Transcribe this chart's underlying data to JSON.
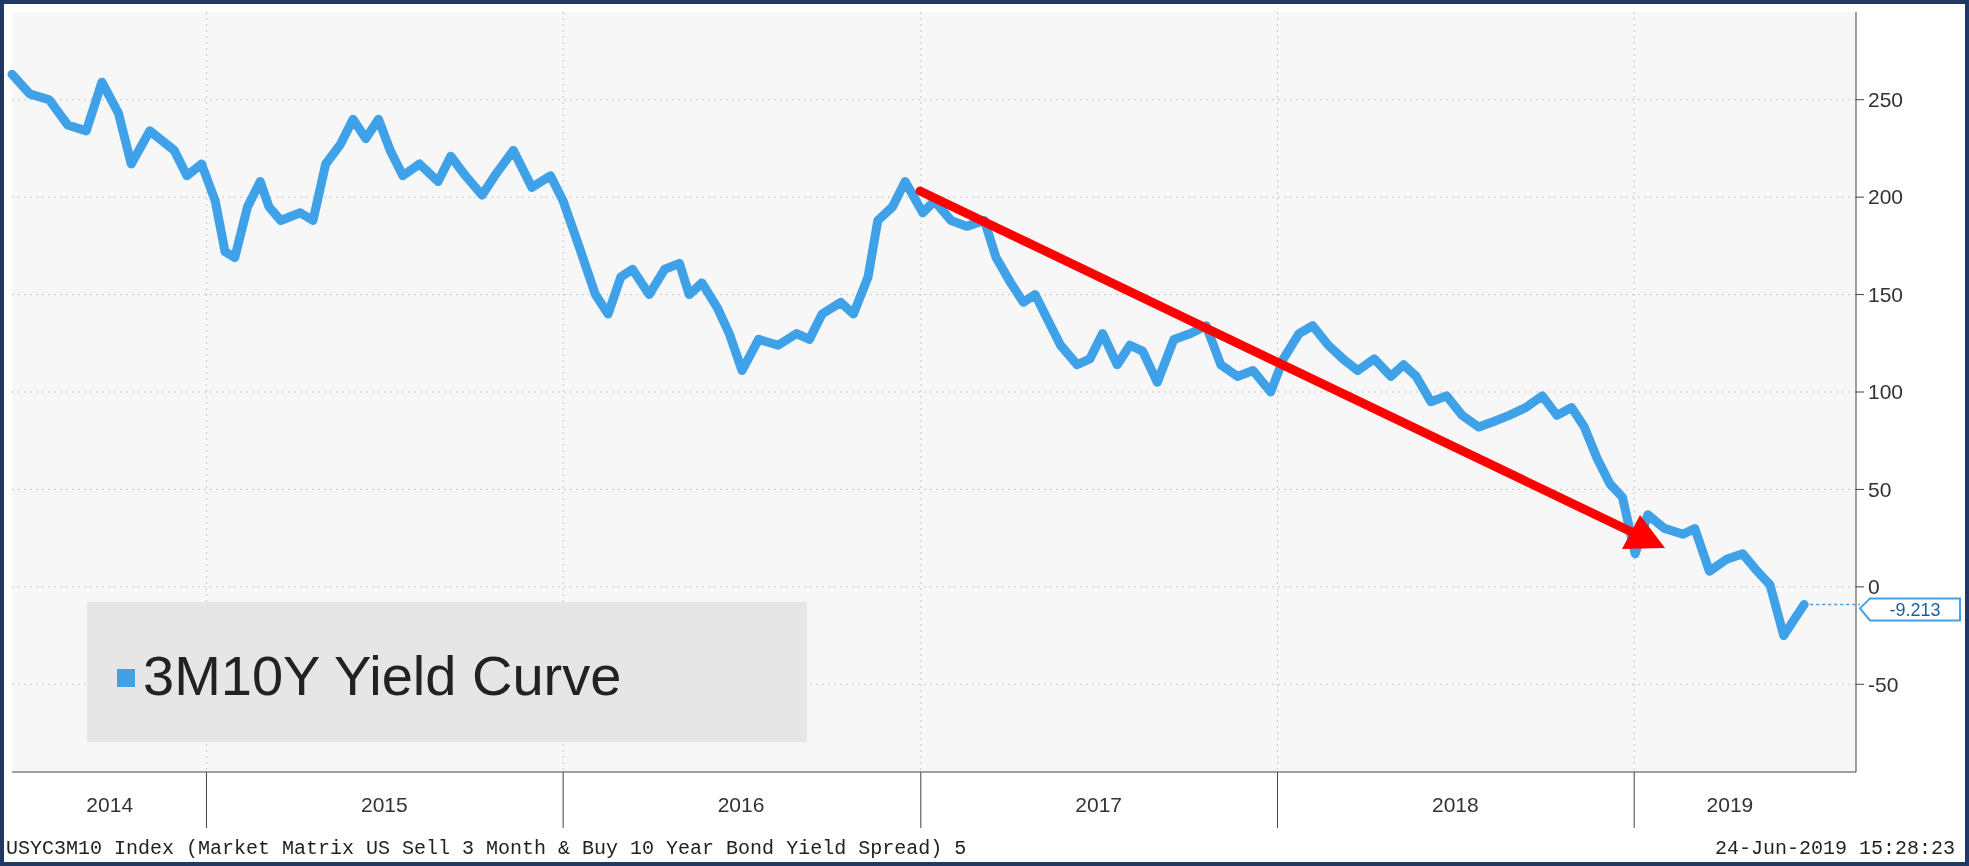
{
  "chart_data": {
    "type": "line",
    "xlim": [
      "2014-06-16",
      "2019-08-16"
    ],
    "ylim": [
      -95,
      295
    ],
    "yticks": [
      -50,
      0,
      50,
      100,
      150,
      200,
      250
    ],
    "xticks": [
      {
        "value": "2014-09-24",
        "label": "2014"
      },
      {
        "value": "2015-01-01",
        "label": null
      },
      {
        "value": "2015-07-02",
        "label": "2015"
      },
      {
        "value": "2016-01-01",
        "label": null
      },
      {
        "value": "2016-07-01",
        "label": "2016"
      },
      {
        "value": "2017-01-01",
        "label": null
      },
      {
        "value": "2017-07-02",
        "label": "2017"
      },
      {
        "value": "2018-01-01",
        "label": null
      },
      {
        "value": "2018-07-02",
        "label": "2018"
      },
      {
        "value": "2019-01-01",
        "label": null
      },
      {
        "value": "2019-04-09",
        "label": "2019"
      }
    ],
    "grid": true,
    "legend": "bottom left",
    "line_style": "solid",
    "marker": "none",
    "annotations": [
      "-9.213",
      "USYC3M10 Index (Market Matrix US Sell 3 Month & Buy 10 Year Bond Yield Spread) 5",
      "24-Jun-2019 15:28:23"
    ],
    "x": [
      "2014-06-16",
      "2014-07-04",
      "2014-07-24",
      "2014-08-12",
      "2014-08-31",
      "2014-09-16",
      "2014-10-03",
      "2014-10-16",
      "2014-11-04",
      "2014-11-29",
      "2014-12-12",
      "2014-12-27",
      "2015-01-10",
      "2015-01-20",
      "2015-01-30",
      "2015-02-12",
      "2015-02-25",
      "2015-03-06",
      "2015-03-18",
      "2015-04-07",
      "2015-04-20",
      "2015-05-03",
      "2015-05-18",
      "2015-05-31",
      "2015-06-13",
      "2015-06-26",
      "2015-07-08",
      "2015-07-21",
      "2015-08-07",
      "2015-08-26",
      "2015-09-08",
      "2015-09-23",
      "2015-10-10",
      "2015-10-23",
      "2015-11-11",
      "2015-11-30",
      "2015-12-19",
      "2016-01-01",
      "2016-01-17",
      "2016-02-03",
      "2016-02-16",
      "2016-02-29",
      "2016-03-12",
      "2016-03-29",
      "2016-04-14",
      "2016-04-29",
      "2016-05-09",
      "2016-05-22",
      "2016-06-07",
      "2016-06-19",
      "2016-07-02",
      "2016-07-19",
      "2016-08-08",
      "2016-08-27",
      "2016-09-09",
      "2016-09-22",
      "2016-10-11",
      "2016-10-24",
      "2016-11-08",
      "2016-11-18",
      "2016-12-03",
      "2016-12-16",
      "2017-01-03",
      "2017-01-15",
      "2017-02-01",
      "2017-02-17",
      "2017-03-07",
      "2017-03-19",
      "2017-04-03",
      "2017-04-16",
      "2017-04-28",
      "2017-05-11",
      "2017-05-24",
      "2017-06-10",
      "2017-06-23",
      "2017-07-06",
      "2017-07-21",
      "2017-08-03",
      "2017-08-16",
      "2017-08-31",
      "2017-09-17",
      "2017-10-04",
      "2017-10-20",
      "2017-11-04",
      "2017-11-21",
      "2017-12-07",
      "2017-12-25",
      "2018-01-07",
      "2018-01-23",
      "2018-02-06",
      "2018-02-22",
      "2018-03-09",
      "2018-03-24",
      "2018-04-10",
      "2018-04-27",
      "2018-05-10",
      "2018-05-23",
      "2018-06-07",
      "2018-06-23",
      "2018-07-09",
      "2018-07-26",
      "2018-08-11",
      "2018-08-26",
      "2018-09-12",
      "2018-09-29",
      "2018-10-14",
      "2018-10-29",
      "2018-11-11",
      "2018-11-24",
      "2018-12-07",
      "2018-12-20",
      "2019-01-02",
      "2019-01-15",
      "2019-02-01",
      "2019-02-20",
      "2019-03-04",
      "2019-03-19",
      "2019-04-05",
      "2019-04-22",
      "2019-05-07",
      "2019-05-20",
      "2019-06-03",
      "2019-06-16",
      "2019-06-24"
    ],
    "series": [
      {
        "name": "3M10Y Yield Curve",
        "color": "#3fa2e8",
        "values": [
          263,
          253,
          250,
          237,
          234,
          259,
          243,
          217,
          234,
          224,
          211,
          217,
          198,
          172,
          169,
          195,
          208,
          195,
          188,
          192,
          188,
          217,
          227,
          240,
          230,
          240,
          224,
          211,
          217,
          208,
          221,
          211,
          201,
          211,
          224,
          205,
          211,
          198,
          175,
          150,
          140,
          159,
          163,
          150,
          163,
          166,
          150,
          156,
          143,
          130,
          111,
          127,
          124,
          130,
          127,
          140,
          146,
          140,
          159,
          188,
          195,
          208,
          192,
          198,
          188,
          185,
          188,
          169,
          156,
          146,
          150,
          137,
          124,
          114,
          117,
          130,
          114,
          124,
          121,
          105,
          127,
          130,
          134,
          114,
          108,
          111,
          100,
          117,
          130,
          134,
          124,
          117,
          111,
          117,
          108,
          114,
          108,
          95,
          98,
          88,
          82,
          85,
          88,
          92,
          98,
          88,
          92,
          82,
          66,
          53,
          46,
          17,
          37,
          30,
          27,
          30,
          8,
          14,
          17,
          8,
          1,
          -25,
          -15,
          -9
        ]
      }
    ]
  }
}
